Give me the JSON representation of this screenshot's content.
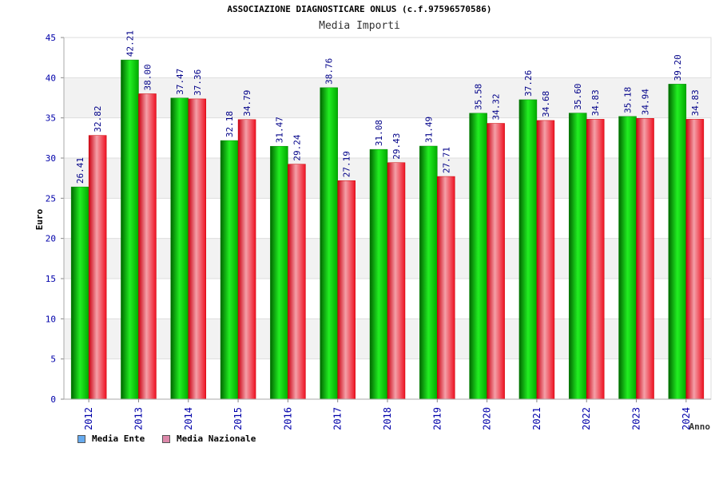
{
  "header": {
    "title": "ASSOCIAZIONE DIAGNOSTICARE ONLUS (c.f.97596570586)",
    "subtitle": "Media Importi"
  },
  "chart_data": {
    "type": "bar",
    "title": "Media Importi",
    "xlabel": "Anno",
    "ylabel": "Euro",
    "ylim": [
      0,
      45
    ],
    "yticks": [
      "0",
      "5",
      "10",
      "15",
      "20",
      "25",
      "30",
      "35",
      "40",
      "45"
    ],
    "grid": true,
    "legend_position": "bottom-left",
    "categories": [
      "2012",
      "2013",
      "2014",
      "2015",
      "2016",
      "2017",
      "2018",
      "2019",
      "2020",
      "2021",
      "2022",
      "2023",
      "2024"
    ],
    "series": [
      {
        "name": "Media Ente",
        "color": "#00bb00",
        "legend_color": "#66aaee",
        "values": [
          26.41,
          42.21,
          37.47,
          32.18,
          31.47,
          38.76,
          31.08,
          31.49,
          35.58,
          37.26,
          35.6,
          35.18,
          39.2
        ],
        "labels": [
          "26.41",
          "42.21",
          "37.47",
          "32.18",
          "31.47",
          "38.76",
          "31.08",
          "31.49",
          "35.58",
          "37.26",
          "35.60",
          "35.18",
          "39.20"
        ]
      },
      {
        "name": "Media Nazionale",
        "color": "#ee2233",
        "legend_color": "#dd88aa",
        "values": [
          32.82,
          38.0,
          37.36,
          34.79,
          29.24,
          27.19,
          29.43,
          27.71,
          34.32,
          34.68,
          34.83,
          34.94,
          34.83
        ],
        "labels": [
          "32.82",
          "38.00",
          "37.36",
          "34.79",
          "29.24",
          "27.19",
          "29.43",
          "27.71",
          "34.32",
          "34.68",
          "34.83",
          "34.94",
          "34.83"
        ]
      }
    ]
  },
  "legend": {
    "items": [
      {
        "label": "Media Ente",
        "color": "#66aaee"
      },
      {
        "label": "Media Nazionale",
        "color": "#dd88aa"
      }
    ]
  }
}
